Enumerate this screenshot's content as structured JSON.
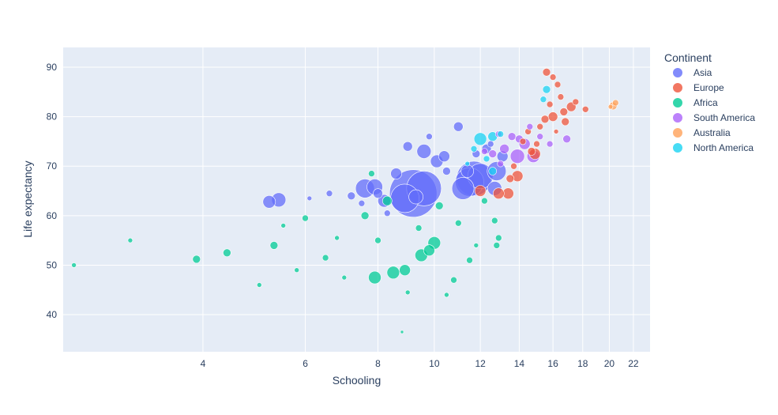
{
  "chart_data": {
    "type": "scatter",
    "subtype": "bubble",
    "title": "",
    "xlabel": "Schooling",
    "ylabel": "Life expectancy",
    "x_scale": "log",
    "xlim": [
      2.3,
      23.5
    ],
    "ylim": [
      32.5,
      94
    ],
    "x_ticks": [
      4,
      6,
      8,
      10,
      12,
      14,
      16,
      18,
      20,
      22
    ],
    "y_ticks": [
      40,
      50,
      60,
      70,
      80,
      90
    ],
    "grid": true,
    "legend_title": "Continent",
    "legend_position": "right",
    "colors": {
      "plot_background": "#E5ECF6",
      "grid": "#ffffff",
      "text": "#2a3f5f"
    },
    "series": [
      {
        "name": "Asia",
        "color": "#636EFA",
        "points": [
          [
            9.2,
            64.5,
            30
          ],
          [
            9.6,
            65.5,
            22
          ],
          [
            8.9,
            63.5,
            18
          ],
          [
            11.7,
            67.5,
            22
          ],
          [
            11.5,
            66.8,
            18
          ],
          [
            11.2,
            65.5,
            14
          ],
          [
            12.0,
            68.0,
            16
          ],
          [
            12.8,
            69.0,
            12
          ],
          [
            7.6,
            65.5,
            12
          ],
          [
            7.9,
            65.8,
            10
          ],
          [
            5.4,
            63.2,
            9
          ],
          [
            5.2,
            62.8,
            8
          ],
          [
            9.6,
            73.0,
            9
          ],
          [
            10.1,
            71.0,
            8
          ],
          [
            12.7,
            65.5,
            9
          ],
          [
            11.0,
            78.0,
            6
          ],
          [
            8.6,
            68.5,
            7
          ],
          [
            8.2,
            63.0,
            8
          ],
          [
            9.3,
            63.8,
            9
          ],
          [
            10.4,
            72.0,
            7
          ],
          [
            9.0,
            74.0,
            6
          ],
          [
            11.4,
            69.0,
            8
          ],
          [
            13.1,
            72.0,
            7
          ],
          [
            12.3,
            73.5,
            6
          ],
          [
            11.8,
            72.5,
            5
          ],
          [
            6.6,
            64.5,
            4
          ],
          [
            7.2,
            64.0,
            5
          ],
          [
            8.0,
            64.5,
            6
          ],
          [
            7.5,
            62.5,
            4
          ],
          [
            10.5,
            69.0,
            5
          ],
          [
            6.1,
            63.5,
            3
          ],
          [
            9.8,
            76.0,
            4
          ],
          [
            12.5,
            74.5,
            4
          ],
          [
            8.3,
            60.5,
            4
          ]
        ]
      },
      {
        "name": "Europe",
        "color": "#EF553B",
        "points": [
          [
            13.4,
            64.5,
            7
          ],
          [
            12.9,
            64.5,
            7
          ],
          [
            12.0,
            65.0,
            7
          ],
          [
            14.9,
            72.5,
            7
          ],
          [
            13.9,
            68.0,
            7
          ],
          [
            13.5,
            67.5,
            5
          ],
          [
            15.6,
            89.0,
            5
          ],
          [
            16.0,
            88.0,
            4
          ],
          [
            16.3,
            86.5,
            4
          ],
          [
            17.2,
            82.0,
            6
          ],
          [
            16.7,
            81.0,
            5
          ],
          [
            16.0,
            80.0,
            6
          ],
          [
            15.5,
            79.5,
            5
          ],
          [
            15.2,
            78.0,
            4
          ],
          [
            14.5,
            77.0,
            4
          ],
          [
            16.5,
            84.0,
            4
          ],
          [
            17.5,
            83.0,
            4
          ],
          [
            15.8,
            82.5,
            4
          ],
          [
            14.2,
            75.0,
            4
          ],
          [
            16.8,
            79.0,
            5
          ],
          [
            18.2,
            81.5,
            4
          ],
          [
            13.7,
            70.0,
            4
          ],
          [
            15.0,
            74.5,
            4
          ],
          [
            16.2,
            77.0,
            3
          ],
          [
            14.7,
            73.0,
            5
          ]
        ]
      },
      {
        "name": "Africa",
        "color": "#00CC96",
        "points": [
          [
            7.9,
            47.5,
            8
          ],
          [
            8.5,
            48.5,
            8
          ],
          [
            8.9,
            49.0,
            7
          ],
          [
            9.5,
            52.0,
            8
          ],
          [
            10.0,
            54.5,
            8
          ],
          [
            9.8,
            53.0,
            7
          ],
          [
            4.4,
            52.5,
            5
          ],
          [
            3.9,
            51.2,
            5
          ],
          [
            5.3,
            54.0,
            5
          ],
          [
            8.3,
            63.0,
            6
          ],
          [
            7.6,
            60.0,
            5
          ],
          [
            10.2,
            62.0,
            5
          ],
          [
            12.8,
            54.0,
            4
          ],
          [
            12.9,
            55.5,
            4
          ],
          [
            12.7,
            59.0,
            4
          ],
          [
            11.5,
            51.0,
            4
          ],
          [
            6.0,
            59.5,
            4
          ],
          [
            5.5,
            58.0,
            3
          ],
          [
            7.8,
            68.5,
            4
          ],
          [
            9.0,
            44.5,
            3
          ],
          [
            10.5,
            44.0,
            3
          ],
          [
            11.0,
            58.5,
            4
          ],
          [
            8.0,
            55.0,
            4
          ],
          [
            6.5,
            51.5,
            4
          ],
          [
            7.0,
            47.5,
            3
          ],
          [
            10.8,
            47.0,
            4
          ],
          [
            12.2,
            63.0,
            4
          ],
          [
            9.4,
            57.5,
            4
          ],
          [
            6.8,
            55.5,
            3
          ],
          [
            2.4,
            50.0,
            3
          ],
          [
            3.0,
            55.0,
            3
          ],
          [
            5.0,
            46.0,
            3
          ],
          [
            11.8,
            54.0,
            3
          ],
          [
            8.8,
            36.5,
            2
          ],
          [
            5.8,
            49.0,
            3
          ]
        ]
      },
      {
        "name": "South America",
        "color": "#AB63FA",
        "points": [
          [
            13.9,
            72.0,
            9
          ],
          [
            14.8,
            72.0,
            8
          ],
          [
            14.3,
            74.5,
            7
          ],
          [
            13.2,
            73.5,
            6
          ],
          [
            12.6,
            72.5,
            5
          ],
          [
            13.6,
            76.0,
            5
          ],
          [
            14.0,
            75.5,
            5
          ],
          [
            12.2,
            73.0,
            4
          ],
          [
            16.9,
            75.5,
            5
          ],
          [
            15.8,
            74.5,
            4
          ],
          [
            12.9,
            76.5,
            4
          ],
          [
            14.6,
            78.0,
            4
          ],
          [
            13.0,
            70.5,
            4
          ],
          [
            15.2,
            76.0,
            4
          ]
        ]
      },
      {
        "name": "Australia",
        "color": "#FFA15A",
        "points": [
          [
            20.3,
            82.2,
            5
          ],
          [
            20.5,
            82.8,
            4
          ],
          [
            20.1,
            82.0,
            3
          ]
        ]
      },
      {
        "name": "North America",
        "color": "#19D3F3",
        "points": [
          [
            12.0,
            75.5,
            8
          ],
          [
            12.6,
            76.0,
            6
          ],
          [
            15.6,
            85.5,
            5
          ],
          [
            15.4,
            83.5,
            4
          ],
          [
            12.6,
            69.0,
            5
          ],
          [
            13.0,
            76.5,
            4
          ],
          [
            11.7,
            73.5,
            4
          ],
          [
            12.3,
            71.5,
            4
          ],
          [
            11.4,
            70.5,
            3
          ]
        ]
      }
    ]
  }
}
